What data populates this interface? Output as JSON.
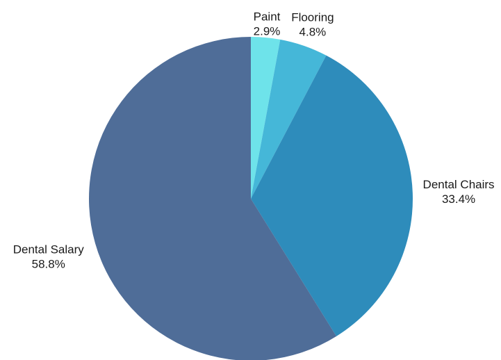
{
  "chart_data": {
    "type": "pie",
    "title": "",
    "start_angle_deg": 0,
    "direction": "clockwise",
    "slices": [
      {
        "label": "Paint",
        "percent_label": "2.9%",
        "value": 2.9,
        "color": "#6ee3ea"
      },
      {
        "label": "Flooring",
        "percent_label": "4.8%",
        "value": 4.8,
        "color": "#45b7d8"
      },
      {
        "label": "Dental Chairs",
        "percent_label": "33.4%",
        "value": 33.4,
        "color": "#2e8cbb"
      },
      {
        "label": "Dental Salary",
        "percent_label": "58.8%",
        "value": 58.8,
        "color": "#4f6d98"
      }
    ]
  }
}
